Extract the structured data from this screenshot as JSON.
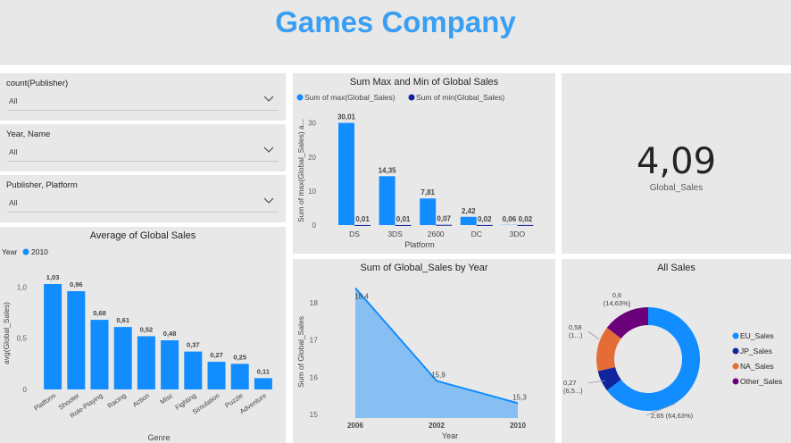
{
  "header": {
    "title": "Games Company"
  },
  "slicers": [
    {
      "label": "count(Publisher)",
      "value": "All"
    },
    {
      "label": "Year, Name",
      "value": "All"
    },
    {
      "label": "Publisher, Platform",
      "value": "All"
    }
  ],
  "card": {
    "value": "4,09",
    "label": "Global_Sales"
  },
  "colors": {
    "primary": "#118dff",
    "dark": "#12239e",
    "orange": "#e66c37",
    "purple": "#6b007b",
    "title": "#3a9ff2"
  },
  "chart_data": [
    {
      "id": "max-min",
      "type": "bar",
      "title": "Sum Max and Min of Global Sales",
      "legend": [
        "Sum of max(Global_Sales)",
        "Sum of min(Global_Sales)"
      ],
      "categories": [
        "DS",
        "3DS",
        "2600",
        "DC",
        "3DO"
      ],
      "series": [
        {
          "name": "Sum of max(Global_Sales)",
          "values": [
            30.01,
            14.35,
            7.81,
            2.42,
            0.06
          ],
          "labels": [
            "30,01",
            "14,35",
            "7,81",
            "2,42",
            "0,06"
          ]
        },
        {
          "name": "Sum of min(Global_Sales)",
          "values": [
            0.01,
            0.01,
            0.07,
            0.02,
            0.02
          ],
          "labels": [
            "0,01",
            "0,01",
            "0,07",
            "0,02",
            "0,02"
          ]
        }
      ],
      "xlabel": "Platform",
      "ylabel": "Sum of max(Global_Sales) a...",
      "ylim": [
        0,
        32
      ],
      "yticks": [
        0,
        10,
        20,
        30
      ]
    },
    {
      "id": "avg-genre",
      "type": "bar",
      "title": "Average of Global Sales",
      "legend_title": "Year",
      "legend": [
        "2010"
      ],
      "categories": [
        "Platform",
        "Shooter",
        "Role-Playing",
        "Racing",
        "Action",
        "Misc",
        "Fighting",
        "Simulation",
        "Puzzle",
        "Adventure"
      ],
      "values": [
        1.03,
        0.96,
        0.68,
        0.61,
        0.52,
        0.48,
        0.37,
        0.27,
        0.25,
        0.11
      ],
      "labels": [
        "1,03",
        "0,96",
        "0,68",
        "0,61",
        "0,52",
        "0,48",
        "0,37",
        "0,27",
        "0,25",
        "0,11"
      ],
      "xlabel": "Genre",
      "ylabel": "avg(Global_Sales)",
      "ylim": [
        0,
        1.1
      ],
      "yticks": [
        0,
        0.5,
        1.0
      ],
      "ytick_labels": [
        "0",
        "0,5",
        "1,0"
      ]
    },
    {
      "id": "by-year",
      "type": "area",
      "title": "Sum of Global_Sales by Year",
      "x": [
        2006,
        2002,
        2010
      ],
      "x_labels": [
        "2006",
        "2002",
        "2010"
      ],
      "y": [
        18.4,
        15.9,
        15.3
      ],
      "labels": [
        "18,4",
        "15,9",
        "15,3"
      ],
      "xlabel": "Year",
      "ylabel": "Sum of Global_Sales",
      "ylim": [
        14.9,
        18.7
      ],
      "yticks": [
        15,
        16,
        17,
        18
      ]
    },
    {
      "id": "all-sales",
      "type": "pie",
      "title": "All Sales",
      "categories": [
        "EU_Sales",
        "JP_Sales",
        "NA_Sales",
        "Other_Sales"
      ],
      "values": [
        2.65,
        0.27,
        0.58,
        0.6
      ],
      "labels": [
        "2,65 (64,63%)",
        "0,27 (6,5...)",
        "0,58 (1...)",
        "0,6 (14,63%)"
      ]
    }
  ]
}
